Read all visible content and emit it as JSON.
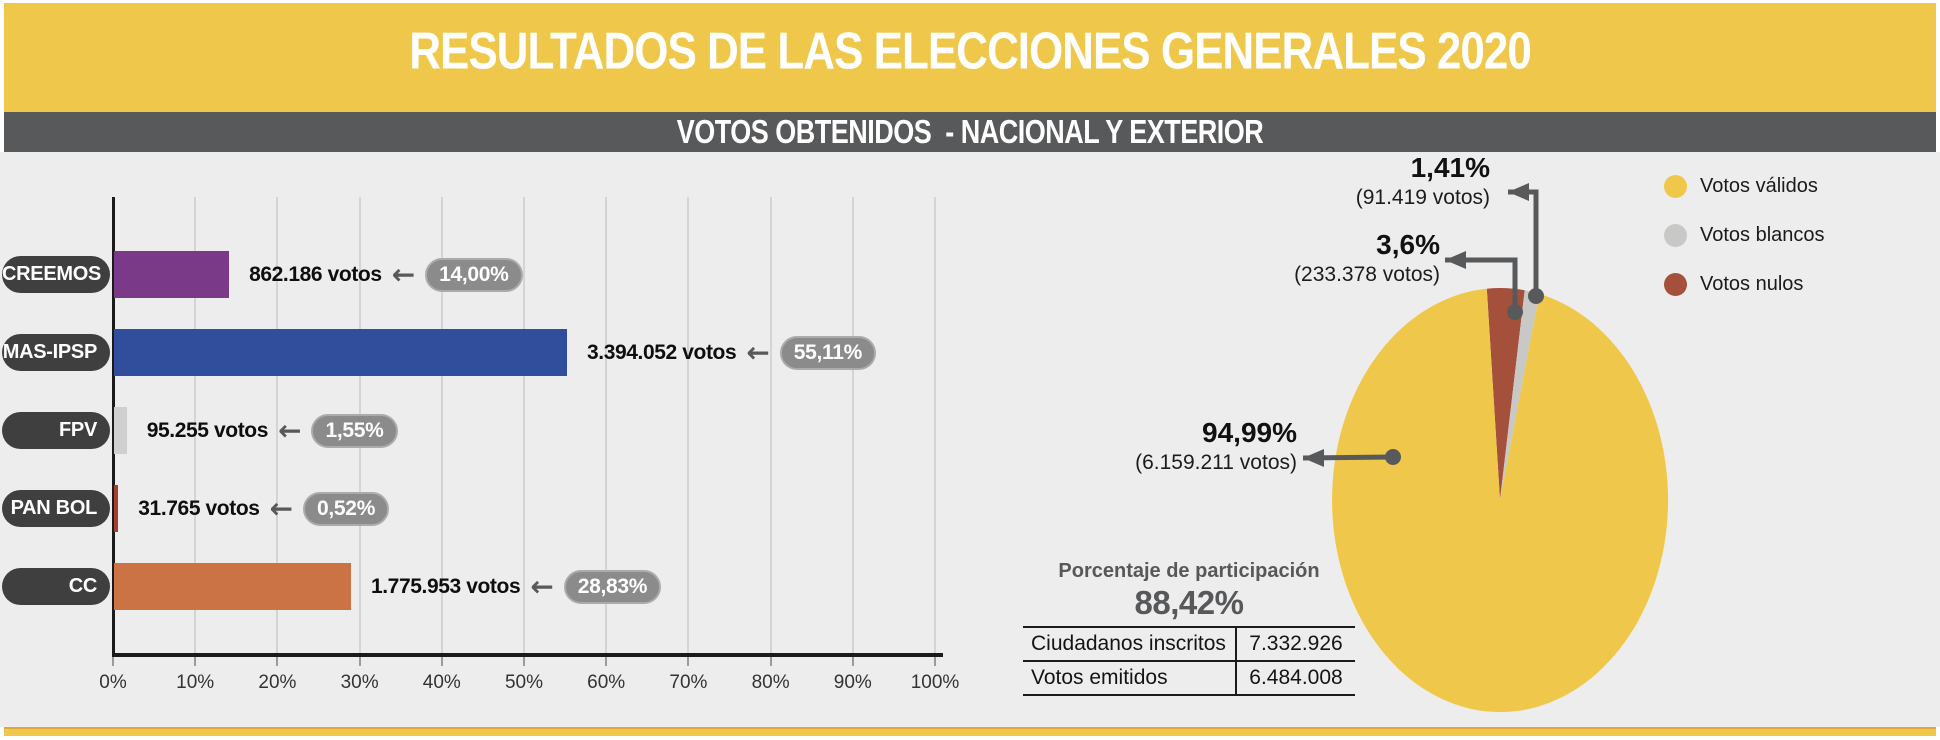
{
  "header": {
    "title": "RESULTADOS DE LAS ELECCIONES GENERALES 2020",
    "bg_color": "#EFC84B"
  },
  "subtitle": {
    "text": "VOTOS OBTENIDOS  - NACIONAL Y EXTERIOR",
    "bg_color": "#58595A"
  },
  "chart_data": [
    {
      "type": "bar",
      "orientation": "horizontal",
      "categories": [
        "CREEMOS",
        "MAS-IPSP",
        "FPV",
        "PAN BOL",
        "CC"
      ],
      "series": [
        {
          "name": "votos",
          "values": [
            862186,
            3394052,
            95255,
            31765,
            1775953
          ]
        }
      ],
      "pct_values": [
        14.0,
        55.11,
        1.55,
        0.52,
        28.83
      ],
      "value_labels": [
        "862.186 votos",
        "3.394.052 votos",
        "95.255 votos",
        "31.765 votos",
        "1.775.953 votos"
      ],
      "pct_labels": [
        "14,00%",
        "55,11%",
        "1,55%",
        "0,52%",
        "28,83%"
      ],
      "bar_colors": [
        "#7B3A87",
        "#304E9C",
        "#CFCFCF",
        "#A83B30",
        "#CC7345"
      ],
      "x_ticks": [
        "0%",
        "10%",
        "20%",
        "30%",
        "40%",
        "50%",
        "60%",
        "70%",
        "80%",
        "90%",
        "100%"
      ],
      "xlim": [
        0,
        100
      ],
      "grid": true
    },
    {
      "type": "pie",
      "start_angle_deg": -4.5,
      "slices": [
        {
          "label": "Votos nulos",
          "pct": 3.6,
          "pct_label": "3,6%",
          "votes_label": "(233.378 votos)",
          "color": "#A4503B"
        },
        {
          "label": "Votos blancos",
          "pct": 1.41,
          "pct_label": "1,41%",
          "votes_label": "(91.419 votos)",
          "color": "#C8C8C6"
        },
        {
          "label": "Votos válidos",
          "pct": 94.99,
          "pct_label": "94,99%",
          "votes_label": "(6.159.211 votos)",
          "color": "#EFC84B"
        }
      ],
      "legend": [
        {
          "label": "Votos válidos",
          "color": "#EFC84B"
        },
        {
          "label": "Votos blancos",
          "color": "#C8C8C6"
        },
        {
          "label": "Votos nulos",
          "color": "#A4503B"
        }
      ],
      "legend_position": "top-right"
    }
  ],
  "participation": {
    "title": "Porcentaje de participación",
    "value": "88,42%",
    "rows": [
      {
        "label": "Ciudadanos inscritos",
        "value": "7.332.926"
      },
      {
        "label": "Votos emitidos",
        "value": "6.484.008"
      }
    ]
  }
}
